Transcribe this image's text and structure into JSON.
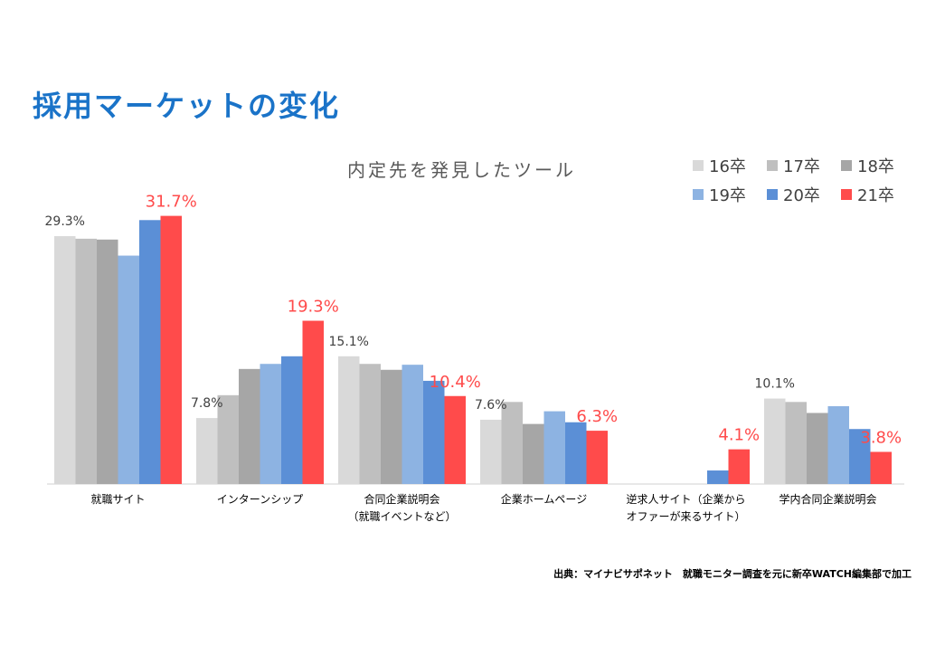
{
  "page": {
    "title": "採用マーケットの変化",
    "source": "出典：マイナビサポネット　就職モニター調査を元に新卒WATCH編集部で加工"
  },
  "chart_data": {
    "type": "bar",
    "title": "内定先を発見したツール",
    "categories": [
      [
        "就職サイト"
      ],
      [
        "インターンシップ"
      ],
      [
        "合同企業説明会",
        "（就職イベントなど）"
      ],
      [
        "企業ホームページ"
      ],
      [
        "逆求人サイト（企業から",
        "オファーが来るサイト）"
      ],
      [
        "学内合同企業説明会"
      ]
    ],
    "series": [
      {
        "name": "16卒",
        "color": "#d9d9d9",
        "values": [
          29.3,
          7.8,
          15.1,
          7.6,
          0,
          10.1
        ]
      },
      {
        "name": "17卒",
        "color": "#bfbfbf",
        "values": [
          29.0,
          10.5,
          14.2,
          9.7,
          0,
          9.7
        ]
      },
      {
        "name": "18卒",
        "color": "#a6a6a6",
        "values": [
          28.9,
          13.6,
          13.5,
          7.1,
          0,
          8.4
        ]
      },
      {
        "name": "19卒",
        "color": "#8db3e2",
        "values": [
          27.0,
          14.2,
          14.1,
          8.6,
          0,
          9.2
        ]
      },
      {
        "name": "20卒",
        "color": "#5b8fd6",
        "values": [
          31.2,
          15.1,
          12.2,
          7.3,
          1.6,
          6.5
        ]
      },
      {
        "name": "21卒",
        "color": "#ff4b4b",
        "values": [
          31.7,
          19.3,
          10.4,
          6.3,
          4.1,
          3.8
        ]
      }
    ],
    "data_labels": [
      {
        "category": 0,
        "series": 0,
        "text": "29.3%"
      },
      {
        "category": 0,
        "series": 5,
        "text": "31.7%"
      },
      {
        "category": 1,
        "series": 0,
        "text": "7.8%"
      },
      {
        "category": 1,
        "series": 5,
        "text": "19.3%"
      },
      {
        "category": 2,
        "series": 0,
        "text": "15.1%"
      },
      {
        "category": 2,
        "series": 5,
        "text": "10.4%"
      },
      {
        "category": 3,
        "series": 0,
        "text": "7.6%"
      },
      {
        "category": 3,
        "series": 5,
        "text": "6.3%"
      },
      {
        "category": 4,
        "series": 5,
        "text": "4.1%"
      },
      {
        "category": 5,
        "series": 0,
        "text": "10.1%"
      },
      {
        "category": 5,
        "series": 5,
        "text": "3.8%"
      }
    ],
    "xlabel": "",
    "ylabel": "",
    "ylim": [
      0,
      36
    ],
    "grid": false,
    "legend_position": "top-right",
    "highlight_color": "#ff4b4b",
    "label_color": "#404040"
  }
}
